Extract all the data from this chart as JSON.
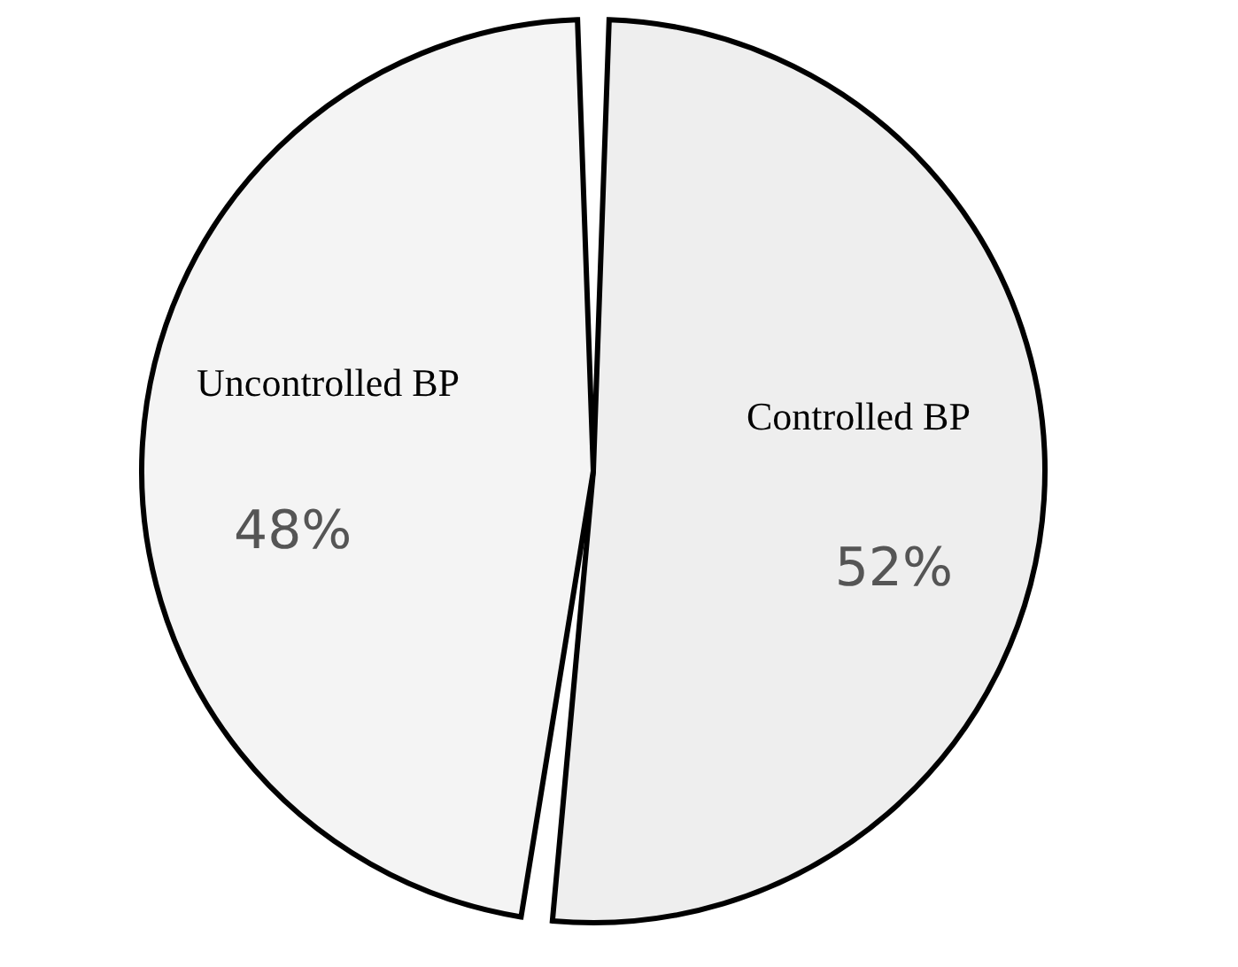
{
  "chart_data": {
    "type": "pie",
    "categories": [
      "Controlled BP",
      "Uncontrolled BP"
    ],
    "values": [
      52,
      48
    ],
    "colors": [
      "#eeeeee",
      "#f4f4f4"
    ],
    "value_labels": [
      "52%",
      "48%"
    ],
    "legend": false
  }
}
